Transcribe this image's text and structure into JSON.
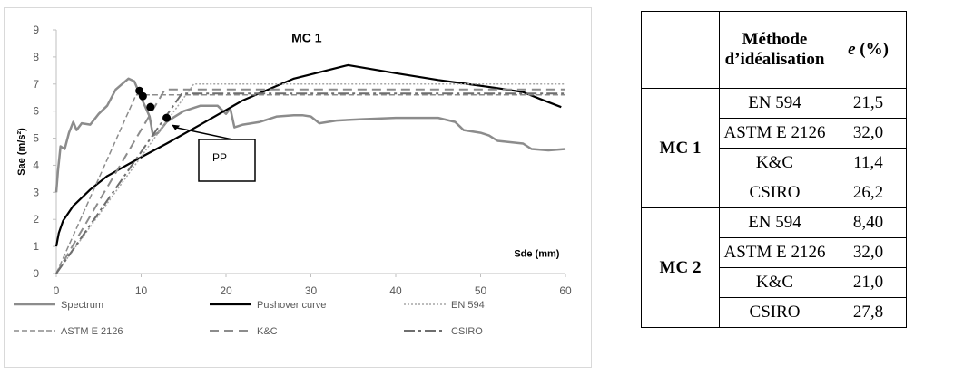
{
  "chart_data": {
    "type": "line",
    "title": "MC 1",
    "xlabel": "Sde (mm)",
    "ylabel": "Sae (m/s²)",
    "xlim": [
      0,
      60
    ],
    "ylim": [
      0,
      9
    ],
    "xticks": [
      "0",
      "10",
      "20",
      "30",
      "40",
      "50",
      "60"
    ],
    "yticks": [
      "0",
      "1",
      "2",
      "3",
      "4",
      "5",
      "6",
      "7",
      "8",
      "9"
    ],
    "grid": false,
    "legend_position": "bottom",
    "series": [
      {
        "name": "Spectrum",
        "color": "#8c8c8c",
        "dash": "solid",
        "width": 2.5,
        "points": [
          [
            0,
            3.0
          ],
          [
            0.2,
            3.8
          ],
          [
            0.5,
            4.7
          ],
          [
            1,
            4.6
          ],
          [
            1.5,
            5.2
          ],
          [
            2,
            5.6
          ],
          [
            2.4,
            5.3
          ],
          [
            3,
            5.55
          ],
          [
            4,
            5.5
          ],
          [
            5,
            5.9
          ],
          [
            6,
            6.2
          ],
          [
            7,
            6.8
          ],
          [
            8.5,
            7.2
          ],
          [
            9.2,
            7.1
          ],
          [
            10,
            6.5
          ],
          [
            11,
            5.8
          ],
          [
            11.4,
            5.1
          ],
          [
            12,
            5.2
          ],
          [
            13,
            5.6
          ],
          [
            14,
            5.8
          ],
          [
            15,
            6.0
          ],
          [
            17,
            6.2
          ],
          [
            19,
            6.2
          ],
          [
            20,
            5.9
          ],
          [
            20.5,
            6.1
          ],
          [
            21,
            5.4
          ],
          [
            22,
            5.5
          ],
          [
            24,
            5.6
          ],
          [
            26,
            5.8
          ],
          [
            28,
            5.85
          ],
          [
            29,
            5.85
          ],
          [
            30,
            5.8
          ],
          [
            31,
            5.55
          ],
          [
            33,
            5.65
          ],
          [
            36,
            5.7
          ],
          [
            40,
            5.75
          ],
          [
            45,
            5.75
          ],
          [
            47,
            5.6
          ],
          [
            48,
            5.3
          ],
          [
            50,
            5.2
          ],
          [
            51,
            5.1
          ],
          [
            52,
            4.9
          ],
          [
            55,
            4.8
          ],
          [
            56,
            4.6
          ],
          [
            58,
            4.55
          ],
          [
            60,
            4.6
          ]
        ]
      },
      {
        "name": "Pushover curve",
        "color": "#000000",
        "dash": "solid",
        "width": 2.2,
        "points": [
          [
            0,
            1.0
          ],
          [
            0.3,
            1.5
          ],
          [
            0.8,
            1.95
          ],
          [
            2,
            2.5
          ],
          [
            4,
            3.1
          ],
          [
            6,
            3.6
          ],
          [
            10,
            4.3
          ],
          [
            13,
            4.8
          ],
          [
            17,
            5.5
          ],
          [
            22,
            6.4
          ],
          [
            28,
            7.2
          ],
          [
            34.4,
            7.7
          ],
          [
            40,
            7.4
          ],
          [
            45,
            7.15
          ],
          [
            52,
            6.85
          ],
          [
            55,
            6.7
          ],
          [
            57,
            6.45
          ],
          [
            59.5,
            6.15
          ]
        ]
      },
      {
        "name": "EN 594",
        "color": "#a6a6a6",
        "dash": "2,2",
        "width": 1.5,
        "points": [
          [
            0,
            0
          ],
          [
            16.2,
            7.0
          ],
          [
            60,
            7.0
          ]
        ]
      },
      {
        "name": "ASTM E 2126",
        "color": "#8c8c8c",
        "dash": "6,3",
        "width": 1.5,
        "points": [
          [
            0,
            0
          ],
          [
            9.4,
            6.6
          ],
          [
            60,
            6.6
          ]
        ]
      },
      {
        "name": "K&C",
        "color": "#8c8c8c",
        "dash": "10,6",
        "width": 2,
        "points": [
          [
            0,
            0
          ],
          [
            12.8,
            6.8
          ],
          [
            60,
            6.8
          ]
        ]
      },
      {
        "name": "CSIRO",
        "color": "#6e6e6e",
        "dash": "12,4,3,4",
        "width": 2,
        "points": [
          [
            0,
            0
          ],
          [
            14.8,
            6.65
          ],
          [
            60,
            6.65
          ]
        ]
      }
    ],
    "markers": [
      [
        9.8,
        6.75
      ],
      [
        10.2,
        6.55
      ],
      [
        11.1,
        6.15
      ],
      [
        13,
        5.75
      ]
    ],
    "annotation": {
      "text": "PP",
      "target": [
        13.6,
        5.5
      ]
    }
  },
  "table": {
    "headers": [
      "",
      "Méthode\nd’idéalisation",
      "e (%)"
    ],
    "groups": [
      {
        "label": "MC 1",
        "rows": [
          [
            "EN 594",
            "21,5"
          ],
          [
            "ASTM E 2126",
            "32,0"
          ],
          [
            "K&C",
            "11,4"
          ],
          [
            "CSIRO",
            "26,2"
          ]
        ]
      },
      {
        "label": "MC 2",
        "rows": [
          [
            "EN 594",
            "8,40"
          ],
          [
            "ASTM E 2126",
            "32,0"
          ],
          [
            "K&C",
            "21,0"
          ],
          [
            "CSIRO",
            "27,8"
          ]
        ]
      }
    ]
  }
}
